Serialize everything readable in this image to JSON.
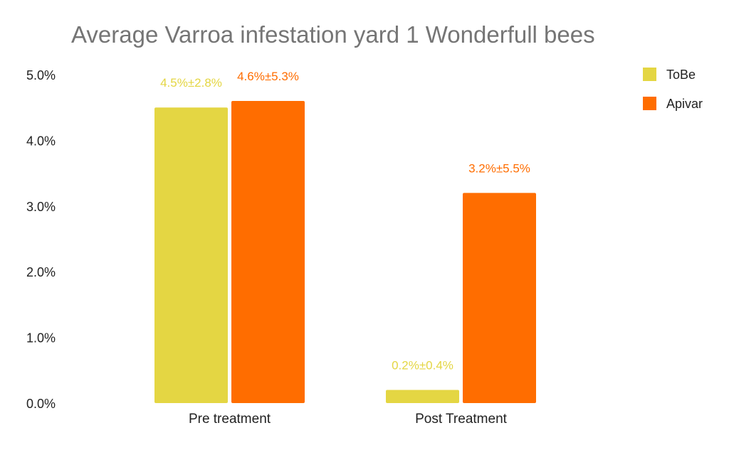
{
  "chart_data": {
    "type": "bar",
    "title": "Average Varroa infestation yard 1 Wonderfull bees",
    "xlabel": "",
    "ylabel": "",
    "categories": [
      "Pre treatment",
      "Post Treatment"
    ],
    "series": [
      {
        "name": "ToBe",
        "color": "#e4d643",
        "values": [
          4.5,
          0.2
        ],
        "labels": [
          "4.5%±2.8%",
          "0.2%±0.4%"
        ]
      },
      {
        "name": "Apivar",
        "color": "#ff6d00",
        "values": [
          4.6,
          3.2
        ],
        "labels": [
          "4.6%±5.3%",
          "3.2%±5.5%"
        ]
      }
    ],
    "ylim": [
      0,
      5
    ],
    "yticks": [
      "0.0%",
      "1.0%",
      "2.0%",
      "3.0%",
      "4.0%",
      "5.0%"
    ],
    "grid": false,
    "legend_position": "top-right"
  }
}
